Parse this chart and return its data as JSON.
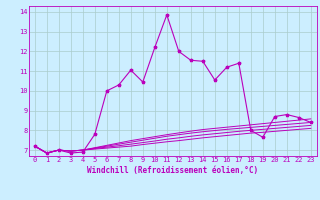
{
  "xlabel": "Windchill (Refroidissement éolien,°C)",
  "background_color": "#cceeff",
  "grid_color": "#aacccc",
  "line_color": "#bb00bb",
  "xlim": [
    -0.5,
    23.5
  ],
  "ylim": [
    6.7,
    14.3
  ],
  "yticks": [
    7,
    8,
    9,
    10,
    11,
    12,
    13,
    14
  ],
  "xticks": [
    0,
    1,
    2,
    3,
    4,
    5,
    6,
    7,
    8,
    9,
    10,
    11,
    12,
    13,
    14,
    15,
    16,
    17,
    18,
    19,
    20,
    21,
    22,
    23
  ],
  "main_line_x": [
    0,
    1,
    2,
    3,
    4,
    5,
    6,
    7,
    8,
    9,
    10,
    11,
    12,
    13,
    14,
    15,
    16,
    17,
    18,
    19,
    20,
    21,
    22,
    23
  ],
  "main_line_y": [
    7.2,
    6.85,
    7.0,
    6.85,
    6.9,
    7.8,
    10.0,
    10.3,
    11.05,
    10.45,
    12.2,
    13.85,
    12.0,
    11.55,
    11.5,
    10.55,
    11.2,
    11.4,
    8.0,
    7.65,
    8.7,
    8.8,
    8.65,
    8.4
  ],
  "smooth_line1_y": [
    7.2,
    6.85,
    7.0,
    6.95,
    7.0,
    7.05,
    7.1,
    7.15,
    7.2,
    7.28,
    7.35,
    7.42,
    7.48,
    7.55,
    7.62,
    7.68,
    7.74,
    7.8,
    7.86,
    7.9,
    7.95,
    8.0,
    8.05,
    8.1
  ],
  "smooth_line2_y": [
    7.2,
    6.85,
    7.0,
    6.95,
    7.0,
    7.08,
    7.15,
    7.22,
    7.3,
    7.38,
    7.46,
    7.55,
    7.62,
    7.7,
    7.77,
    7.83,
    7.89,
    7.95,
    8.0,
    8.05,
    8.1,
    8.15,
    8.2,
    8.25
  ],
  "smooth_line3_y": [
    7.2,
    6.85,
    7.0,
    6.95,
    7.0,
    7.1,
    7.2,
    7.3,
    7.4,
    7.5,
    7.6,
    7.7,
    7.78,
    7.86,
    7.93,
    7.99,
    8.05,
    8.1,
    8.15,
    8.2,
    8.25,
    8.3,
    8.35,
    8.4
  ],
  "smooth_line4_y": [
    7.2,
    6.85,
    7.0,
    6.95,
    7.0,
    7.12,
    7.24,
    7.36,
    7.48,
    7.58,
    7.68,
    7.78,
    7.87,
    7.96,
    8.04,
    8.1,
    8.16,
    8.22,
    8.28,
    8.34,
    8.4,
    8.46,
    8.52,
    8.58
  ]
}
